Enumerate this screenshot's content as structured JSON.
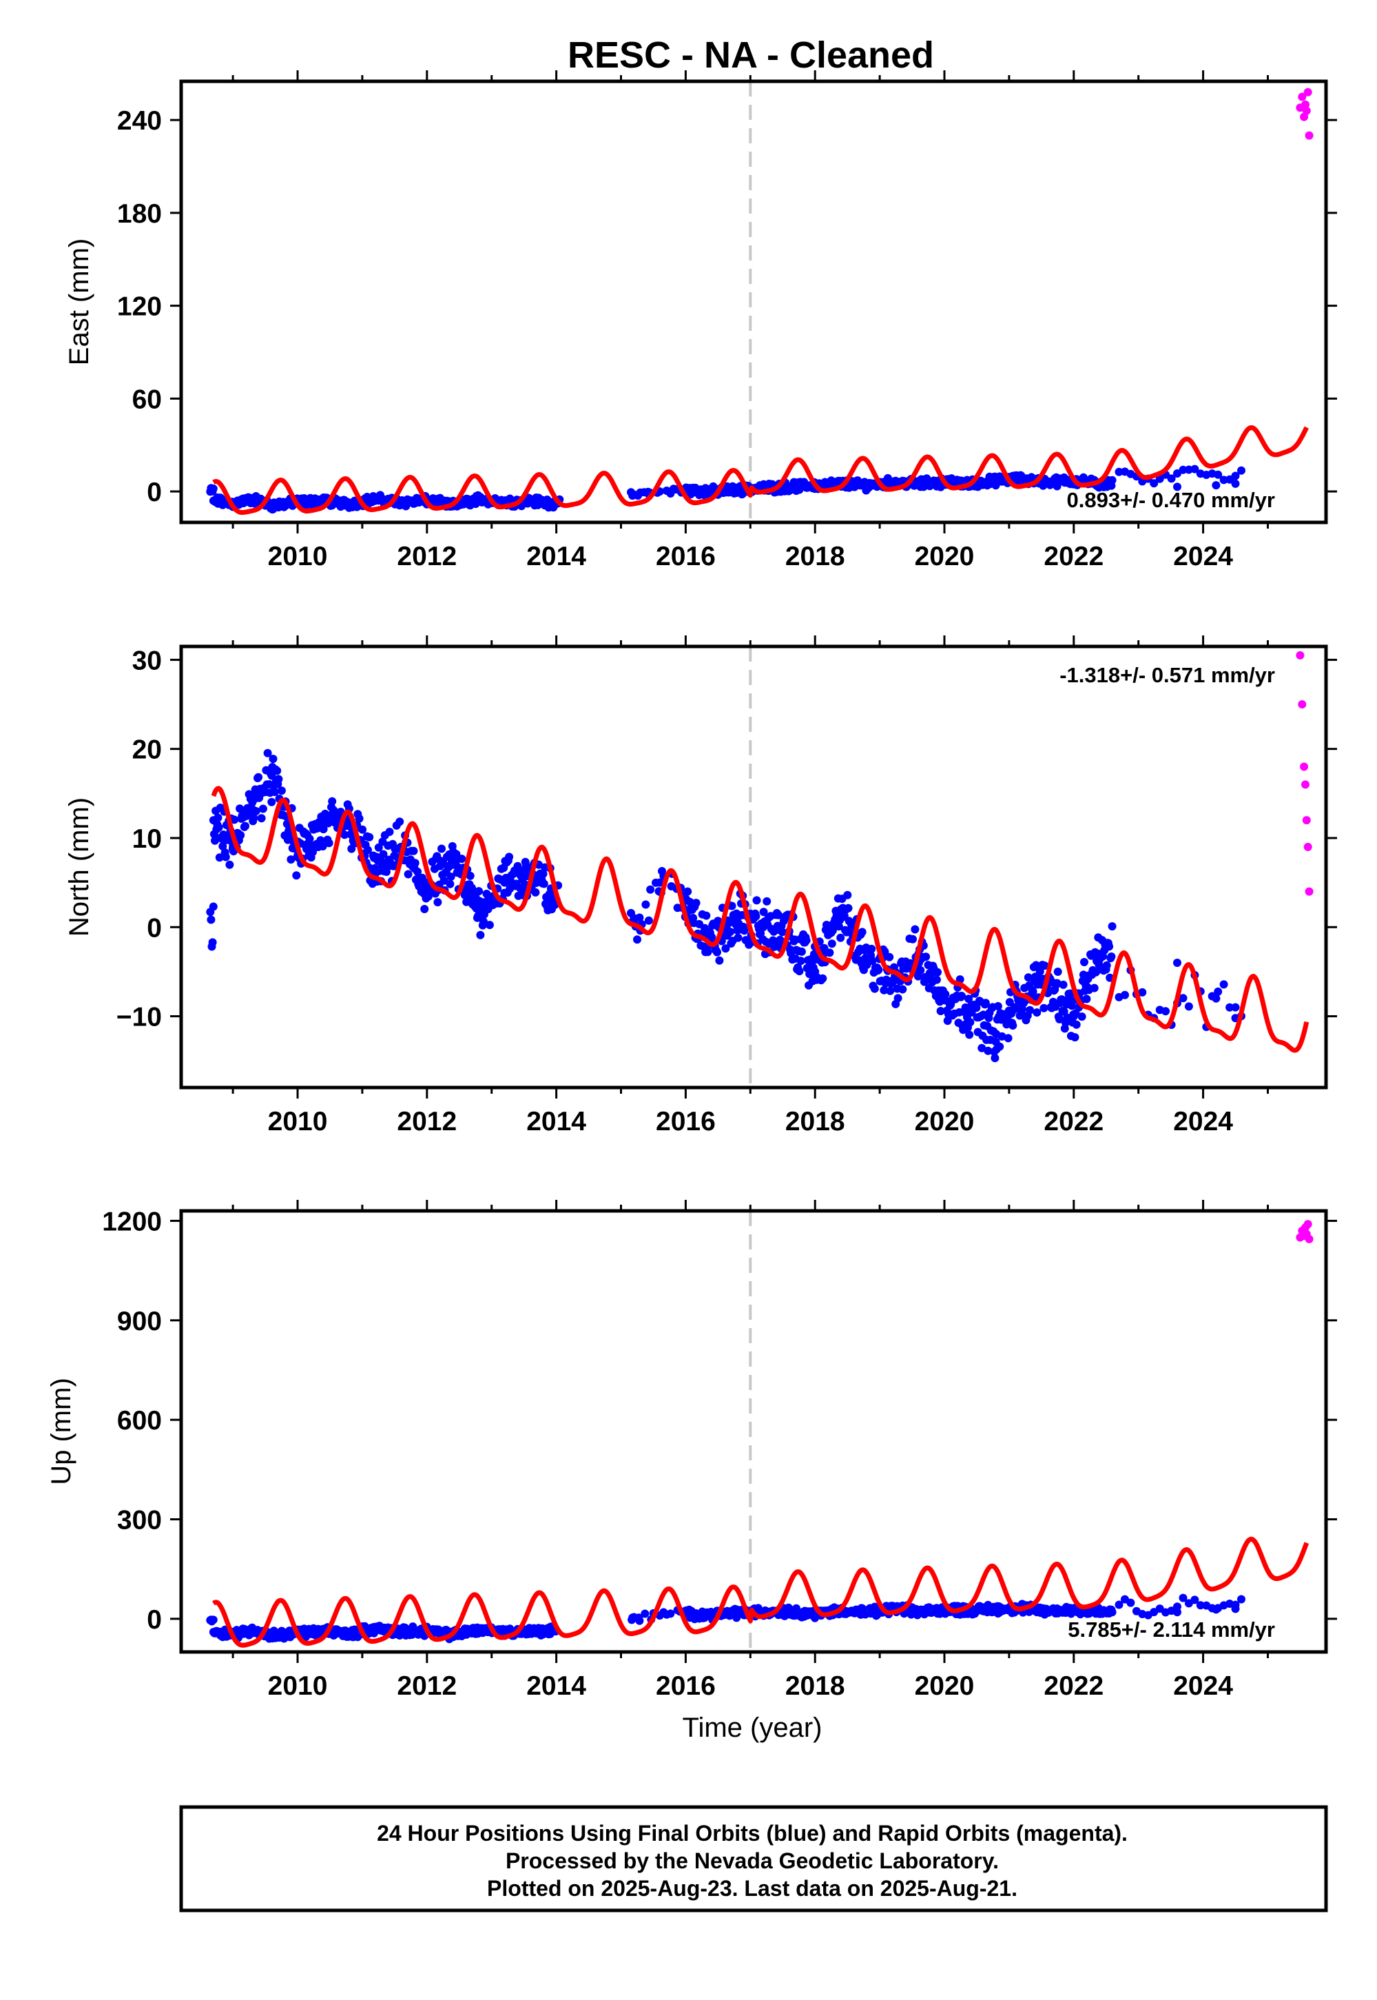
{
  "title": "RESC  - NA - Cleaned",
  "xaxis": {
    "label": "Time (year)",
    "range": [
      2008.2,
      2025.9
    ],
    "ticks": [
      2010,
      2012,
      2014,
      2016,
      2018,
      2020,
      2022,
      2024
    ],
    "tick_labels": [
      "2010",
      "2012",
      "2014",
      "2016",
      "2018",
      "2020",
      "2022",
      "2024"
    ]
  },
  "colors": {
    "final_orbits": "#0000ff",
    "rapid_orbits": "#ff00ff",
    "model": "#ff0000",
    "marker_line": "#c8c8c8"
  },
  "caption": {
    "line1": "24 Hour Positions Using Final Orbits (blue) and Rapid Orbits (magenta).",
    "line2": "Processed by the Nevada Geodetic Laboratory.",
    "line3": "Plotted on 2025-Aug-23. Last data on 2025-Aug-21."
  },
  "chart_data": [
    {
      "type": "scatter",
      "component": "east",
      "ylabel": "East (mm)",
      "ylim": [
        -20,
        265
      ],
      "yticks": [
        0,
        60,
        120,
        180,
        240
      ],
      "ytick_labels": [
        "0",
        "60",
        "120",
        "180",
        "240"
      ],
      "rate_text": "0.893+/- 0.470 mm/yr",
      "rate_position": "bottom-right",
      "vertical_marker_year": 2017.0,
      "model": {
        "trend": [
          -6,
          0.893
        ],
        "annual_amplitude": 10,
        "semiannual_amplitude": 2.5,
        "phase": 1.4,
        "ref_year": 2008.7,
        "offset_2017": 6,
        "x_end": 2025.6,
        "end_ramp": 20
      },
      "series": [
        {
          "name": "Final Orbits",
          "color": "blue",
          "x": [
            2008.7,
            2009.0,
            2009.3,
            2009.6,
            2010.0,
            2010.4,
            2010.8,
            2011.2,
            2011.6,
            2012.0,
            2012.4,
            2012.8,
            2013.2,
            2013.6,
            2014.0,
            2015.2,
            2015.6,
            2016.0,
            2016.4,
            2016.8,
            2017.2,
            2017.6,
            2018.0,
            2018.4,
            2018.8,
            2019.2,
            2019.6,
            2020.0,
            2020.4,
            2020.8,
            2021.2,
            2021.6,
            2022.0,
            2022.4,
            2023.6,
            2024.2,
            2024.5
          ],
          "y": [
            -6,
            -8,
            -5,
            -9,
            -7,
            -6,
            -8,
            -5,
            -7,
            -6,
            -9,
            -5,
            -7,
            -6,
            -8,
            -2,
            0,
            1,
            0,
            1,
            2,
            3,
            4,
            5,
            4,
            6,
            5,
            6,
            5,
            7,
            8,
            6,
            7,
            5,
            3,
            4,
            5
          ]
        },
        {
          "name": "Rapid Orbits",
          "color": "magenta",
          "x": [
            2025.5,
            2025.53,
            2025.56,
            2025.58,
            2025.6,
            2025.62,
            2025.64
          ],
          "y": [
            248,
            255,
            242,
            250,
            246,
            258,
            230
          ]
        }
      ]
    },
    {
      "type": "scatter",
      "component": "north",
      "ylabel": "North (mm)",
      "ylim": [
        -18,
        31.5
      ],
      "yticks": [
        -10,
        0,
        10,
        20,
        30
      ],
      "ytick_labels": [
        "−10",
        "0",
        "10",
        "20",
        "30"
      ],
      "rate_text": "-1.318+/- 0.571 mm/yr",
      "rate_position": "top-right",
      "vertical_marker_year": 2017.0,
      "model": {
        "trend": [
          11,
          -1.318
        ],
        "annual_amplitude": 3.5,
        "semiannual_amplitude": 1.2,
        "phase": 1.0,
        "ref_year": 2008.7,
        "offset_2017": 0,
        "x_end": 2025.6,
        "end_ramp": 0
      },
      "series": [
        {
          "name": "Final Orbits",
          "color": "blue",
          "x": [
            2008.7,
            2009.0,
            2009.3,
            2009.6,
            2010.0,
            2010.4,
            2010.8,
            2011.2,
            2011.6,
            2012.0,
            2012.4,
            2012.8,
            2013.2,
            2013.6,
            2014.0,
            2015.2,
            2015.6,
            2016.0,
            2016.4,
            2016.8,
            2017.2,
            2017.6,
            2018.0,
            2018.4,
            2018.8,
            2019.2,
            2019.6,
            2020.0,
            2020.4,
            2020.8,
            2021.2,
            2021.6,
            2022.0,
            2022.4,
            2023.6,
            2024.2,
            2024.5
          ],
          "y": [
            12,
            9,
            14,
            17,
            8,
            11,
            12,
            6,
            9,
            4,
            7,
            2,
            5,
            6,
            3,
            1,
            5,
            3,
            -2,
            1,
            0,
            -1,
            -5,
            2,
            -4,
            -6,
            -3,
            -8,
            -9,
            -12,
            -8,
            -6,
            -10,
            -3,
            -4,
            -8,
            -9
          ]
        },
        {
          "name": "Rapid Orbits",
          "color": "magenta",
          "x": [
            2025.5,
            2025.53,
            2025.56,
            2025.58,
            2025.6,
            2025.62,
            2025.64
          ],
          "y": [
            30.5,
            25,
            18,
            16,
            12,
            9,
            4
          ]
        }
      ]
    },
    {
      "type": "scatter",
      "component": "up",
      "ylabel": "Up (mm)",
      "ylim": [
        -100,
        1230
      ],
      "yticks": [
        0,
        300,
        600,
        900,
        1200
      ],
      "ytick_labels": [
        "0",
        "300",
        "600",
        "900",
        "1200"
      ],
      "rate_text": "5.785+/- 2.114 mm/yr",
      "rate_position": "bottom-right",
      "vertical_marker_year": 2017.0,
      "model": {
        "trend": [
          -30,
          5.785
        ],
        "annual_amplitude": 65,
        "semiannual_amplitude": 15,
        "phase": 1.4,
        "ref_year": 2008.7,
        "offset_2017": 40,
        "x_end": 2025.6,
        "end_ramp": 80
      },
      "series": [
        {
          "name": "Final Orbits",
          "color": "blue",
          "x": [
            2008.7,
            2009.0,
            2009.3,
            2009.6,
            2010.0,
            2010.4,
            2010.8,
            2011.2,
            2011.6,
            2012.0,
            2012.4,
            2012.8,
            2013.2,
            2013.6,
            2014.0,
            2015.2,
            2015.6,
            2016.0,
            2016.4,
            2016.8,
            2017.2,
            2017.6,
            2018.0,
            2018.4,
            2018.8,
            2019.2,
            2019.6,
            2020.0,
            2020.4,
            2020.8,
            2021.2,
            2021.6,
            2022.0,
            2022.4,
            2023.6,
            2024.2,
            2024.5
          ],
          "y": [
            -40,
            -45,
            -35,
            -50,
            -42,
            -38,
            -44,
            -30,
            -40,
            -36,
            -48,
            -32,
            -40,
            -38,
            -35,
            5,
            10,
            15,
            12,
            18,
            20,
            22,
            15,
            25,
            18,
            30,
            22,
            28,
            25,
            30,
            32,
            22,
            28,
            20,
            20,
            28,
            30
          ]
        },
        {
          "name": "Rapid Orbits",
          "color": "magenta",
          "x": [
            2025.5,
            2025.53,
            2025.56,
            2025.58,
            2025.6,
            2025.62,
            2025.64
          ],
          "y": [
            1150,
            1170,
            1155,
            1180,
            1160,
            1190,
            1145
          ]
        }
      ]
    }
  ]
}
